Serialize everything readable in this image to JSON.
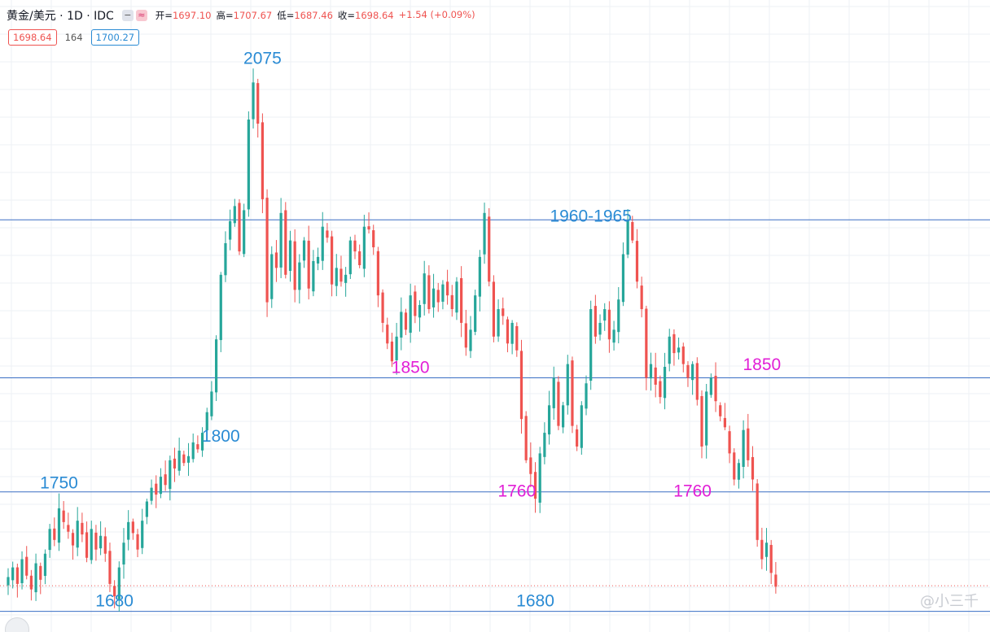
{
  "header": {
    "symbol": "黄金/美元 · 1D · IDC",
    "minus_label": "−",
    "wave_label": "≈",
    "open_label": "开=",
    "open_value": "1697.10",
    "high_label": "高=",
    "high_value": "1707.67",
    "low_label": "低=",
    "low_value": "1687.46",
    "close_label": "收=",
    "close_value": "1698.64",
    "change_value": "+1.54 (+0.09%)",
    "price_pill": "1698.64",
    "volume": "164",
    "ask_pill": "1700.27"
  },
  "watermark": "@小三千",
  "colors": {
    "up": "#26a69a",
    "down": "#ef5350",
    "level_line": "#3a6fc4",
    "label_blue": "#2a8bd4",
    "label_magenta": "#e21fd6",
    "grid": "#eef0f4",
    "last_price_line": "#ef5350"
  },
  "chart_data": {
    "type": "candlestick",
    "timeframe": "1D",
    "ylim": [
      1665,
      2125
    ],
    "current_price": 1698.64,
    "grid": true,
    "horizontal_levels": [
      1965,
      1850,
      1767,
      1680
    ],
    "annotations": [
      {
        "text": "2075",
        "price": 2075,
        "bar": 55,
        "color": "blue"
      },
      {
        "text": "1960-1965",
        "price": 1960,
        "bar": 126,
        "color": "blue"
      },
      {
        "text": "1850",
        "price": 1850,
        "bar": 87,
        "color": "magenta"
      },
      {
        "text": "1850",
        "price": 1852,
        "bar": 163,
        "color": "magenta"
      },
      {
        "text": "1800",
        "price": 1800,
        "bar": 46,
        "color": "blue"
      },
      {
        "text": "1750",
        "price": 1766,
        "bar": 11,
        "color": "blue"
      },
      {
        "text": "1760",
        "price": 1760,
        "bar": 110,
        "color": "magenta"
      },
      {
        "text": "1760",
        "price": 1760,
        "bar": 148,
        "color": "magenta"
      },
      {
        "text": "1680",
        "price": 1680,
        "bar": 23,
        "color": "blue"
      },
      {
        "text": "1680",
        "price": 1680,
        "bar": 114,
        "color": "blue"
      }
    ],
    "closes": [
      1705,
      1712,
      1700,
      1718,
      1706,
      1696,
      1715,
      1703,
      1722,
      1740,
      1732,
      1755,
      1745,
      1738,
      1728,
      1746,
      1736,
      1719,
      1740,
      1725,
      1735,
      1722,
      1700,
      1691,
      1712,
      1730,
      1745,
      1737,
      1725,
      1746,
      1760,
      1770,
      1765,
      1778,
      1772,
      1790,
      1784,
      1797,
      1788,
      1793,
      1803,
      1798,
      1810,
      1825,
      1840,
      1878,
      1925,
      1948,
      1964,
      1975,
      1942,
      1972,
      2038,
      2065,
      2035,
      1980,
      1905,
      1940,
      1930,
      1970,
      1925,
      1950,
      1914,
      1934,
      1950,
      1915,
      1935,
      1938,
      1960,
      1952,
      1918,
      1930,
      1920,
      1925,
      1950,
      1942,
      1932,
      1960,
      1958,
      1945,
      1910,
      1890,
      1875,
      1862,
      1880,
      1898,
      1885,
      1910,
      1895,
      1903,
      1926,
      1900,
      1915,
      1905,
      1918,
      1910,
      1900,
      1920,
      1890,
      1872,
      1885,
      1910,
      1938,
      1970,
      1920,
      1880,
      1900,
      1895,
      1875,
      1890,
      1870,
      1820,
      1790,
      1780,
      1762,
      1795,
      1810,
      1830,
      1850,
      1815,
      1830,
      1860,
      1815,
      1800,
      1830,
      1846,
      1900,
      1880,
      1890,
      1900,
      1878,
      1885,
      1907,
      1940,
      1964,
      1950,
      1920,
      1900,
      1850,
      1860,
      1845,
      1836,
      1858,
      1880,
      1868,
      1872,
      1860,
      1850,
      1860,
      1834,
      1800,
      1840,
      1850,
      1833,
      1822,
      1814,
      1795,
      1776,
      1788,
      1812,
      1790,
      1776,
      1732,
      1718,
      1730,
      1708,
      1698
    ]
  }
}
